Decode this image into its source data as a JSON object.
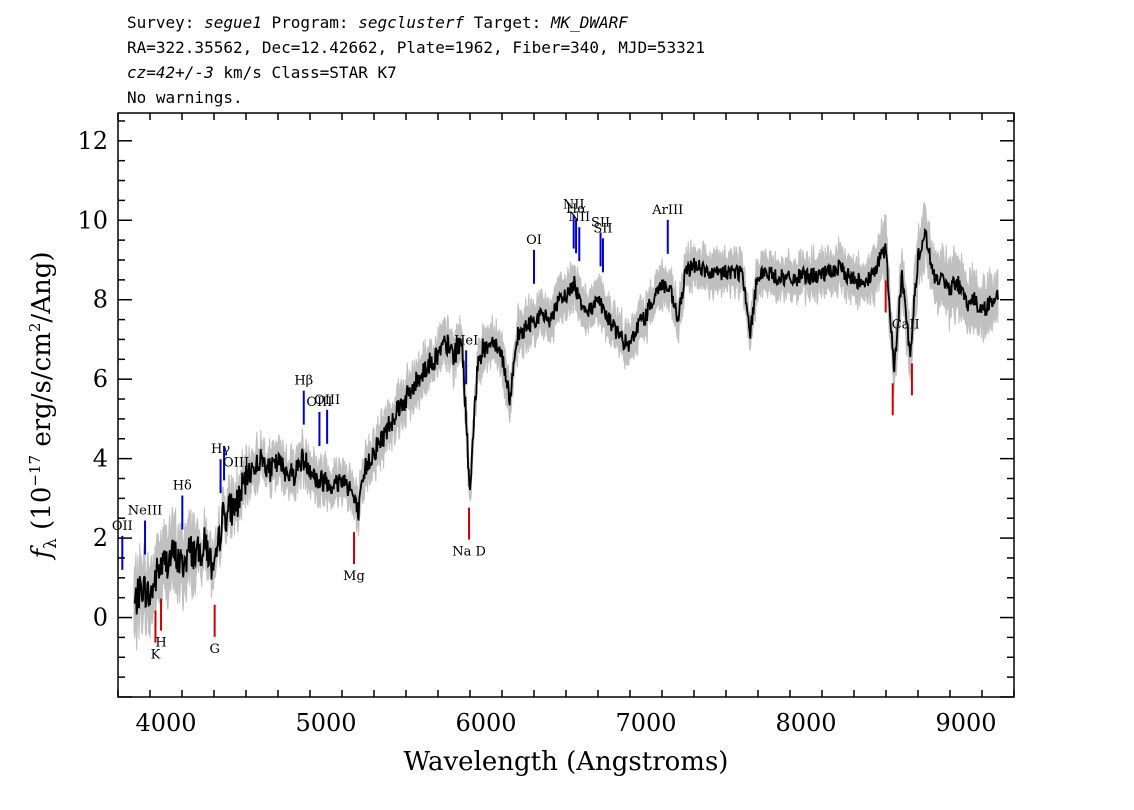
{
  "header": {
    "line1": [
      {
        "text": "Survey: ",
        "italic": false
      },
      {
        "text": "segue1",
        "italic": true
      },
      {
        "text": " Program: ",
        "italic": false
      },
      {
        "text": "segclusterf",
        "italic": true
      },
      {
        "text": " Target: ",
        "italic": false
      },
      {
        "text": "MK_DWARF",
        "italic": true
      }
    ],
    "line2": "RA=322.35562, Dec=12.42662, Plate=1962, Fiber=340, MJD=53321",
    "line3": [
      {
        "text": "cz=42+/-3",
        "italic": true
      },
      {
        "text": " km/s Class=STAR K7",
        "italic": false
      }
    ],
    "line4": "No warnings."
  },
  "chart_data": {
    "type": "line",
    "xlabel": "Wavelength (Angstroms)",
    "ylabel": "f_λ (10^-17 erg/s/cm^2/Ang)",
    "xlim": [
      3700,
      9300
    ],
    "ylim": [
      -2.0,
      12.7
    ],
    "xticks": [
      4000,
      5000,
      6000,
      7000,
      8000,
      9000
    ],
    "yticks": [
      0,
      2,
      4,
      6,
      8,
      10,
      12
    ],
    "colors": {
      "flux": "#000000",
      "error_band": "#c0c0c0",
      "emission_lines": "#0000cc",
      "absorption_lines": "#cc0000",
      "label_ticks": "#000000"
    },
    "series": [
      {
        "x": [
          3800,
          3850,
          3900,
          3950,
          4000,
          4050,
          4100,
          4150,
          4200,
          4250,
          4300,
          4350,
          4400,
          4450,
          4500,
          4550,
          4600,
          4650,
          4700,
          4750,
          4800,
          4850,
          4900,
          4950,
          5000,
          5050,
          5100,
          5150,
          5200,
          5250,
          5300,
          5350,
          5400,
          5450,
          5500,
          5550,
          5600,
          5650,
          5700,
          5750,
          5800,
          5850,
          5900,
          5950,
          6000,
          6050,
          6100,
          6150,
          6200,
          6250,
          6300,
          6350,
          6400,
          6450,
          6500,
          6550,
          6600,
          6650,
          6700,
          6750,
          6800,
          6850,
          6900,
          6950,
          7000,
          7050,
          7100,
          7150,
          7200,
          7250,
          7300,
          7350,
          7400,
          7500,
          7600,
          7650,
          7700,
          7800,
          7900,
          8000,
          8100,
          8200,
          8300,
          8400,
          8500,
          8550,
          8600,
          8650,
          8700,
          8750,
          8800,
          8850,
          8900,
          8950,
          9000,
          9050,
          9100,
          9150,
          9200
        ],
        "values": [
          0.3,
          0.8,
          0.5,
          1.2,
          1.4,
          1.6,
          1.3,
          1.7,
          1.6,
          1.9,
          1.0,
          2.5,
          2.7,
          2.9,
          3.5,
          3.8,
          4.0,
          3.7,
          3.9,
          3.7,
          3.6,
          4.0,
          3.8,
          3.4,
          3.5,
          3.3,
          3.5,
          3.3,
          2.6,
          3.8,
          4.2,
          4.5,
          4.9,
          5.3,
          5.5,
          5.8,
          6.2,
          6.4,
          6.6,
          6.9,
          6.6,
          7.0,
          3.1,
          6.6,
          6.8,
          7.0,
          6.6,
          5.5,
          7.1,
          7.3,
          7.5,
          7.6,
          7.5,
          7.9,
          8.1,
          8.4,
          7.9,
          7.7,
          8.1,
          7.6,
          7.3,
          7.0,
          6.8,
          7.4,
          7.6,
          8.1,
          8.4,
          8.2,
          7.5,
          8.7,
          8.9,
          8.8,
          8.6,
          8.7,
          8.7,
          7.1,
          8.7,
          8.6,
          8.5,
          8.6,
          8.6,
          8.8,
          8.5,
          8.5,
          9.3,
          6.2,
          8.6,
          6.6,
          9.1,
          9.6,
          8.6,
          8.5,
          8.3,
          8.4,
          7.9,
          8.0,
          7.7,
          7.9,
          8.2
        ]
      }
    ],
    "spectral_lines": {
      "emission": [
        {
          "label": "OII",
          "wavelength": 3727
        },
        {
          "label": "NeIII",
          "wavelength": 3869
        },
        {
          "label": "Hδ",
          "wavelength": 4102
        },
        {
          "label": "Hγ",
          "wavelength": 4341
        },
        {
          "label": "OIII",
          "wavelength": 4363
        },
        {
          "label": "Hβ",
          "wavelength": 4861
        },
        {
          "label": "OIII",
          "wavelength": 4959
        },
        {
          "label": "OIII",
          "wavelength": 5007
        },
        {
          "label": "HeI",
          "wavelength": 5876
        },
        {
          "label": "OI",
          "wavelength": 6300
        },
        {
          "label": "NII",
          "wavelength": 6548
        },
        {
          "label": "Hα",
          "wavelength": 6563
        },
        {
          "label": "NII",
          "wavelength": 6583
        },
        {
          "label": "SII",
          "wavelength": 6716
        },
        {
          "label": "SII",
          "wavelength": 6731
        },
        {
          "label": "ArIII",
          "wavelength": 7136
        }
      ],
      "absorption": [
        {
          "label": "K",
          "wavelength": 3934
        },
        {
          "label": "H",
          "wavelength": 3969
        },
        {
          "label": "G",
          "wavelength": 4304
        },
        {
          "label": "Mg",
          "wavelength": 5175
        },
        {
          "label": "Na D",
          "wavelength": 5894
        },
        {
          "label": "CaII",
          "wavelength": 8498
        },
        {
          "label": "CaII",
          "wavelength": 8542
        },
        {
          "label": "CaII",
          "wavelength": 8662
        }
      ]
    }
  }
}
